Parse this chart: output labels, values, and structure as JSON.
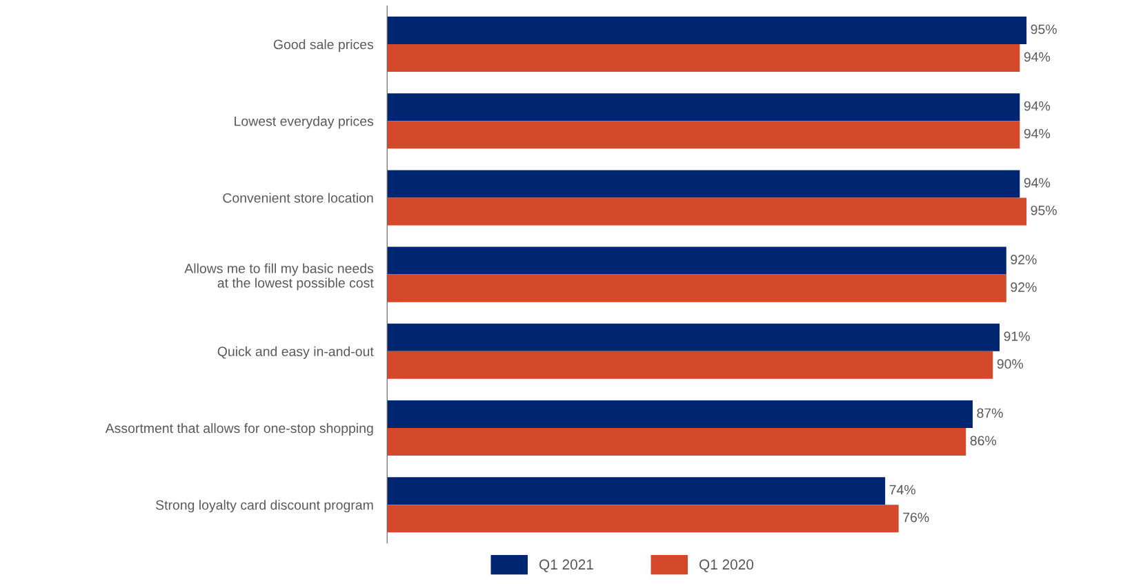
{
  "chart_data": {
    "type": "bar",
    "orientation": "horizontal",
    "relative": false,
    "categories": [
      "Good sale prices",
      "Lowest everyday prices",
      "Convenient store location",
      "Allows me to fill my basic needs\nat the lowest possible cost",
      "Quick and easy in-and-out",
      "Assortment that allows for one-stop shopping",
      "Strong loyalty card discount program"
    ],
    "series": [
      {
        "name": "Q1 2021",
        "color": "#002672",
        "values": [
          95,
          94,
          94,
          92,
          91,
          87,
          74
        ],
        "value_labels": [
          "95%",
          "94%",
          "94%",
          "92%",
          "91%",
          "87%",
          "74%"
        ]
      },
      {
        "name": "Q1 2020",
        "color": "#d4492a",
        "values": [
          94,
          94,
          95,
          92,
          90,
          86,
          76
        ],
        "value_labels": [
          "94%",
          "94%",
          "95%",
          "92%",
          "90%",
          "86%",
          "76%"
        ]
      }
    ],
    "legend": "bottom",
    "tick_labels": "y"
  }
}
